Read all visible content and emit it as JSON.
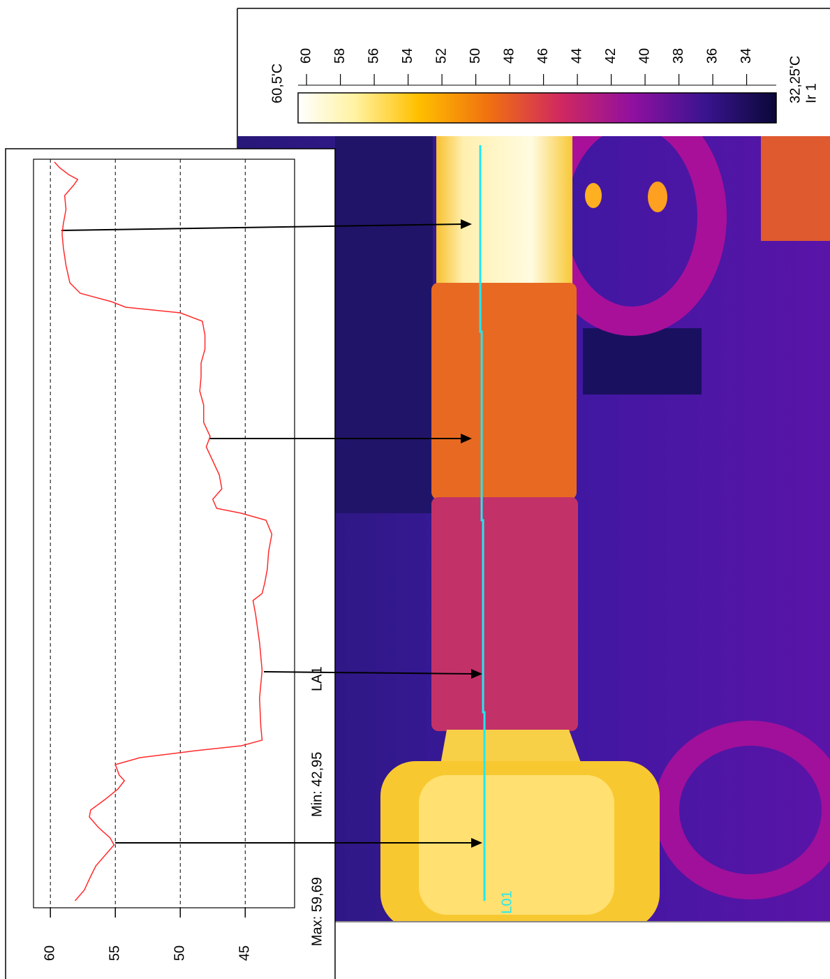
{
  "chart_data": {
    "type": "line",
    "annotations": [
      "Max: 59,69",
      "Min: 42,95",
      "LA1"
    ],
    "x": [
      10,
      25,
      45,
      60,
      75,
      90,
      100,
      115,
      130,
      140,
      155,
      170,
      182,
      190,
      205,
      215,
      225,
      232,
      240,
      260,
      300,
      340,
      380,
      420,
      440,
      450,
      465,
      485,
      510,
      535,
      555,
      565,
      572,
      585,
      600,
      620,
      640,
      660,
      675,
      695,
      720,
      740,
      760,
      780,
      800,
      820,
      840,
      852,
      860,
      868,
      880,
      895,
      920,
      945,
      965,
      980,
      1000,
      1020,
      1035,
      1043,
      1050,
      1060,
      1068
    ],
    "values": [
      58.1,
      57.4,
      56.9,
      56.5,
      55.8,
      55.1,
      55.4,
      56.3,
      57.0,
      56.9,
      55.8,
      54.8,
      54.3,
      54.7,
      55.0,
      53.1,
      48.8,
      45.3,
      43.7,
      43.8,
      43.9,
      43.7,
      43.9,
      44.2,
      44.4,
      43.7,
      43.5,
      43.3,
      43.2,
      42.95,
      43.4,
      45.3,
      47.2,
      47.5,
      46.8,
      47.0,
      47.5,
      48.0,
      47.7,
      48.2,
      48.2,
      48.5,
      48.4,
      48.4,
      48.1,
      48.1,
      48.3,
      50.0,
      54.2,
      55.3,
      57.7,
      58.5,
      58.8,
      59.0,
      59.1,
      59.0,
      58.8,
      58.9,
      58.2,
      57.9,
      58.6,
      59.3,
      59.69
    ],
    "color": "#ff2a2a",
    "xlim": [
      0,
      1072
    ],
    "ylim": [
      41.2,
      61.3
    ],
    "yticks": [
      60,
      55,
      50,
      45
    ],
    "grid": true
  },
  "image": {
    "line_label": "L01",
    "line_color": "#20e8f0"
  },
  "colorbar": {
    "max": {
      "value": 60.5,
      "label": "60,5'C"
    },
    "min": {
      "value": 32.25,
      "label": "32,25'C"
    },
    "ticks": [
      60,
      58,
      56,
      54,
      52,
      50,
      48,
      46,
      44,
      42,
      40,
      38,
      36,
      34
    ],
    "source": "Ir 1"
  }
}
